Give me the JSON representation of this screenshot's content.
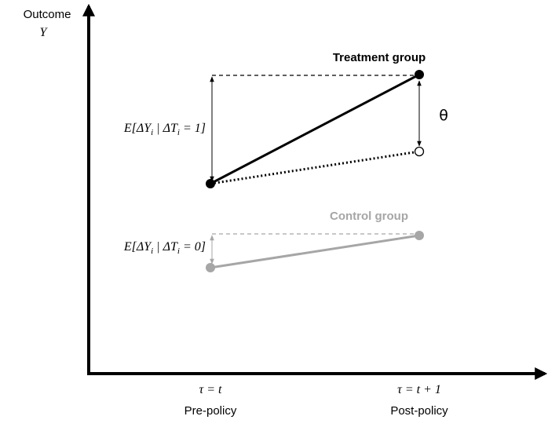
{
  "axes": {
    "y_label": "Outcome",
    "y_symbol": "Y",
    "x_ticks": [
      {
        "symbol": "τ = t",
        "label": "Pre-policy"
      },
      {
        "symbol": "τ = t + 1",
        "label": "Post-policy"
      }
    ]
  },
  "treatment": {
    "label": "Treatment group",
    "effect": "θ",
    "change_label": [
      "E[ΔY",
      "i",
      " | ΔT",
      "i",
      " = 1]"
    ]
  },
  "control": {
    "label": "Control group",
    "change_label": [
      "E[ΔY",
      "i",
      " | ΔT",
      "i",
      " = 0]"
    ]
  }
}
